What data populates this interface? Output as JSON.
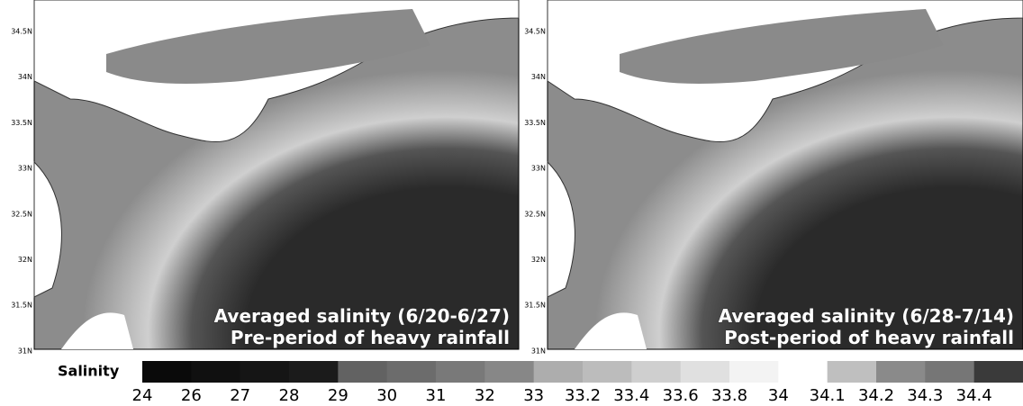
{
  "panels": [
    {
      "lat_labels": [
        "34.5N",
        "34N",
        "33.5N",
        "33N",
        "32.5N",
        "32N",
        "31.5N",
        "31N"
      ],
      "title_lines": [
        "Averaged salinity (6/20-6/27)",
        "Pre-period of heavy rainfall"
      ]
    },
    {
      "lat_labels": [
        "34.5N",
        "34N",
        "33.5N",
        "33N",
        "32.5N",
        "32N",
        "31.5N",
        "31N"
      ],
      "title_lines": [
        "Averaged salinity (6/28-7/14)",
        "Post-period of heavy rainfall"
      ]
    }
  ],
  "colorbar": {
    "label": "Salinity",
    "bins": [
      {
        "label": "24",
        "color": "#0a0a0a"
      },
      {
        "label": "26",
        "color": "#101010"
      },
      {
        "label": "27",
        "color": "#151515"
      },
      {
        "label": "28",
        "color": "#1b1b1b"
      },
      {
        "label": "29",
        "color": "#626262"
      },
      {
        "label": "30",
        "color": "#6c6c6c"
      },
      {
        "label": "31",
        "color": "#797979"
      },
      {
        "label": "32",
        "color": "#878787"
      },
      {
        "label": "33",
        "color": "#adadad"
      },
      {
        "label": "33.2",
        "color": "#bcbcbc"
      },
      {
        "label": "33.4",
        "color": "#cfcfcf"
      },
      {
        "label": "33.6",
        "color": "#e0e0e0"
      },
      {
        "label": "33.8",
        "color": "#f3f3f3"
      },
      {
        "label": "34",
        "color": "#ffffff"
      },
      {
        "label": "34.1",
        "color": "#bfbfbf"
      },
      {
        "label": "34.2",
        "color": "#8a8a8a"
      },
      {
        "label": "34.3",
        "color": "#767676"
      },
      {
        "label": "34.4",
        "color": "#3a3a3a"
      }
    ]
  }
}
